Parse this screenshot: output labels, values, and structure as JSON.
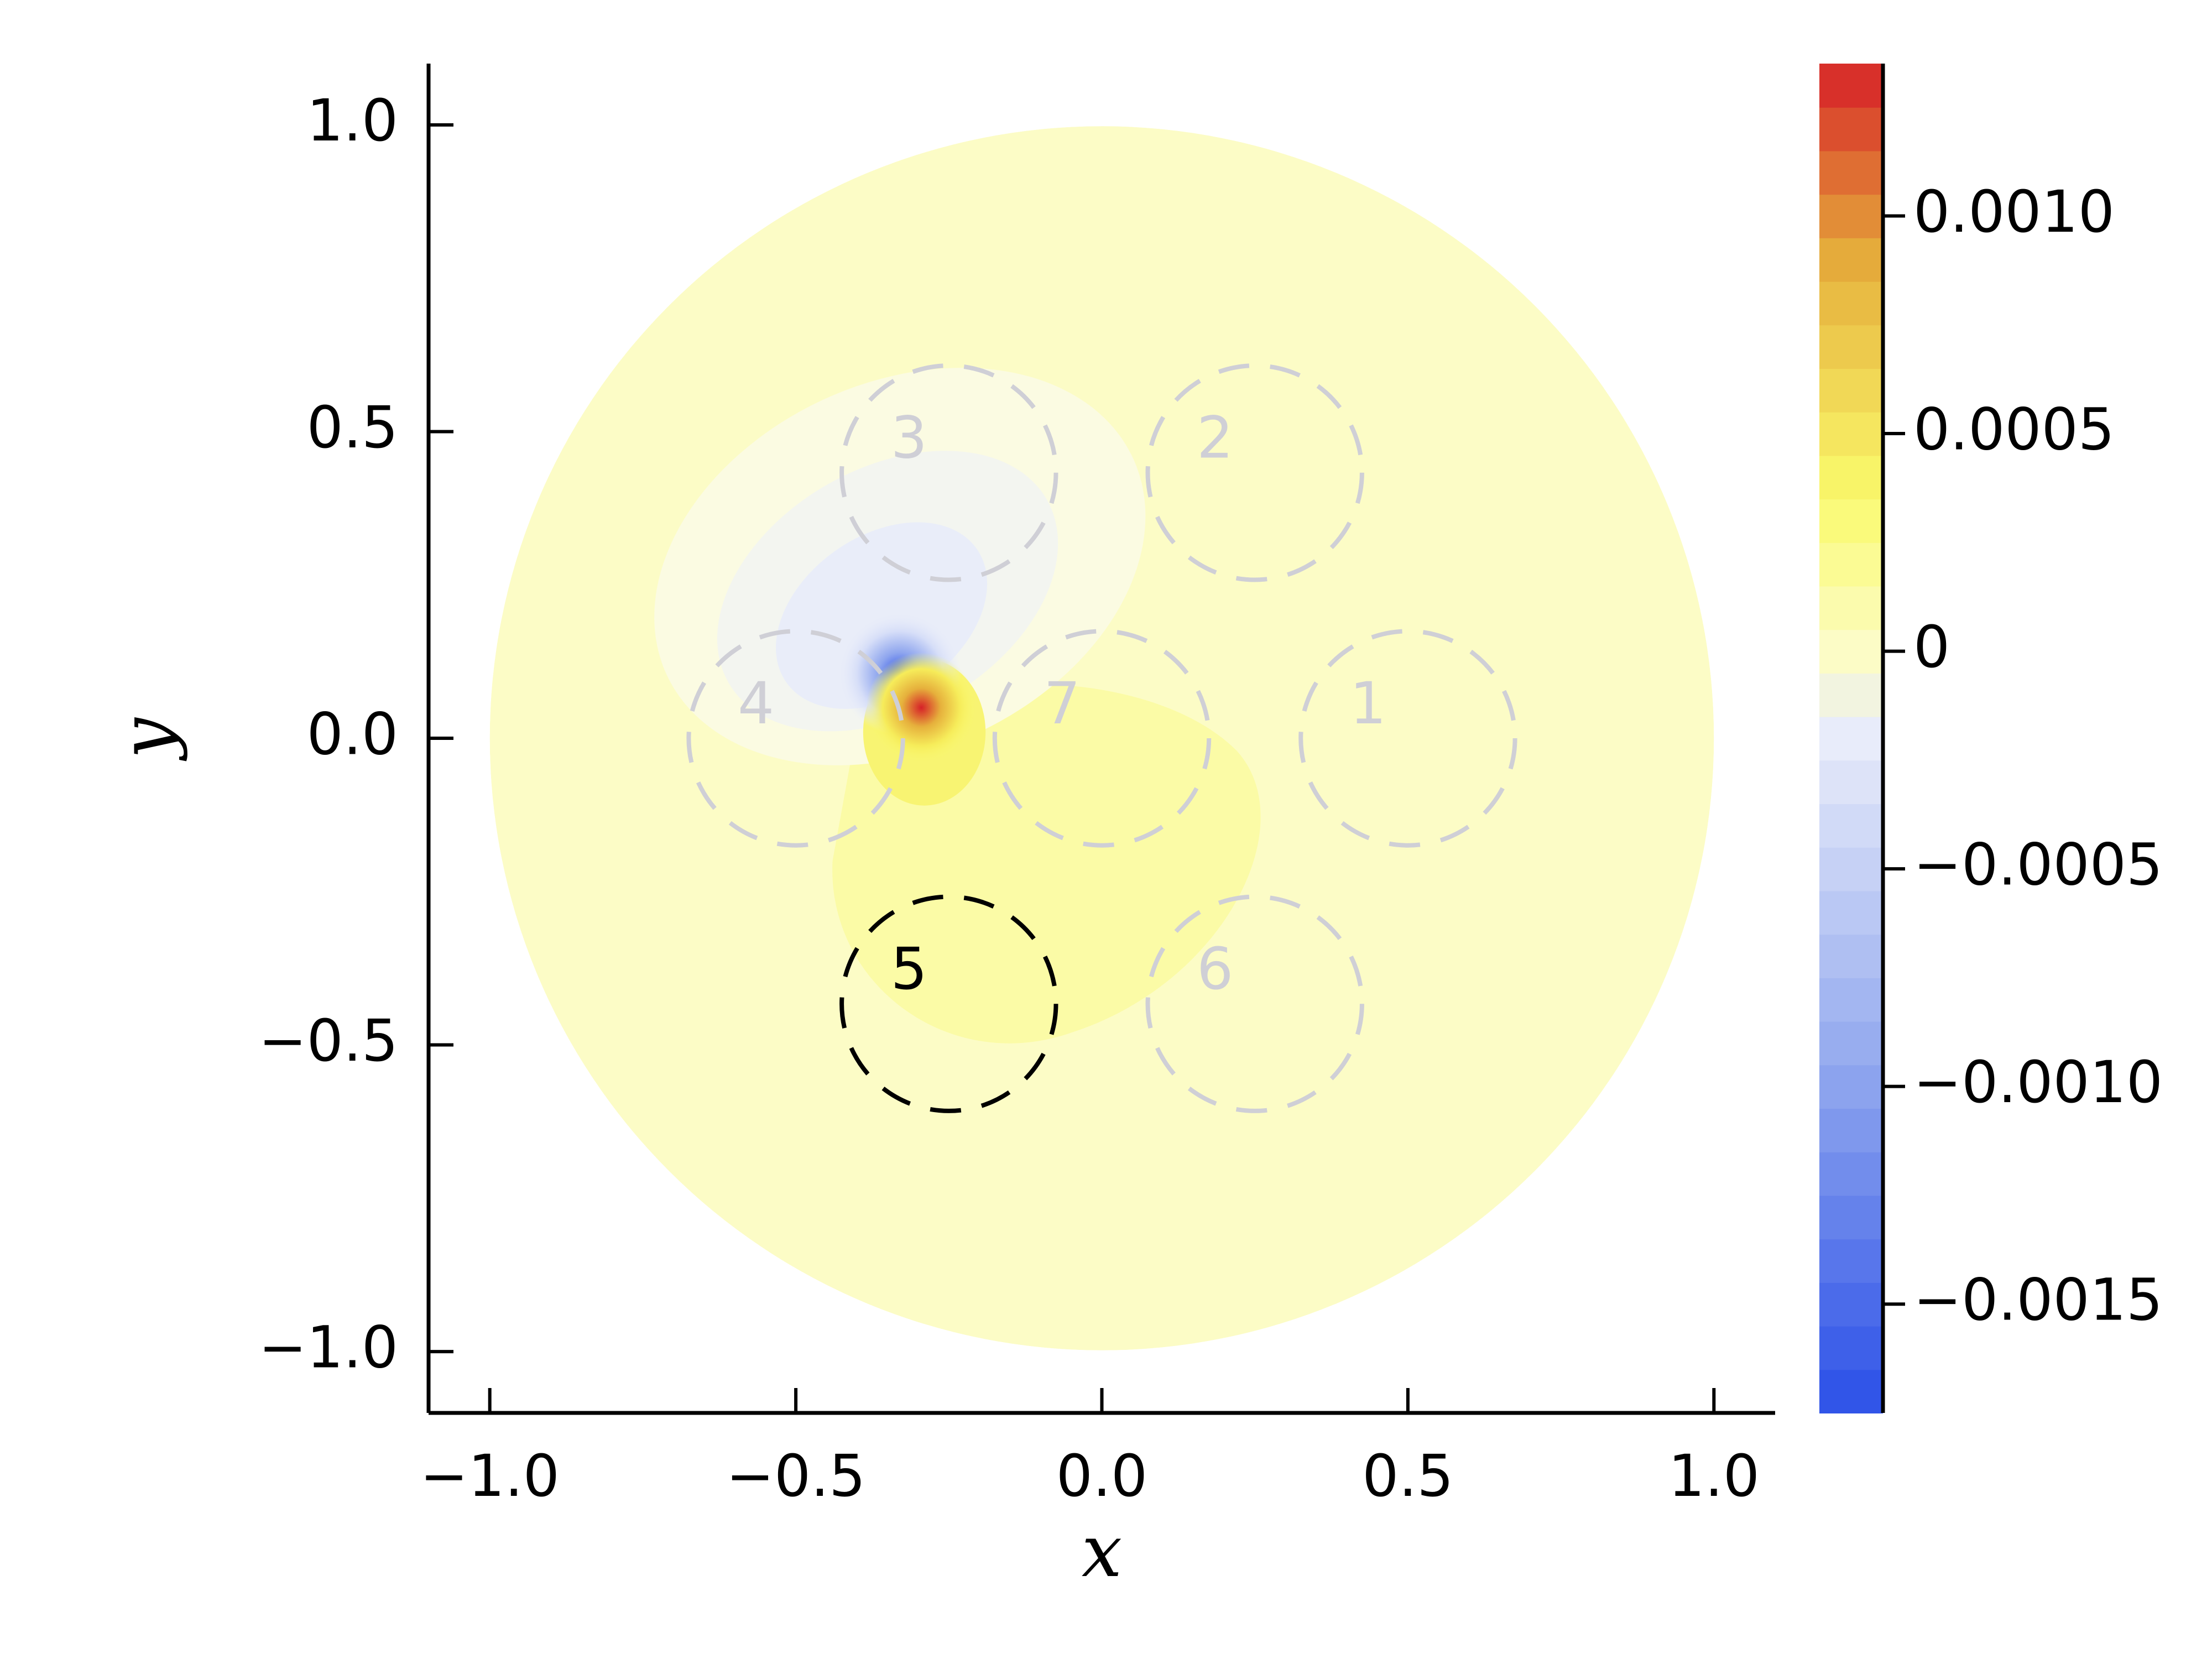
{
  "chart_data": {
    "type": "heatmap",
    "title": "",
    "xlabel": "x",
    "ylabel": "y",
    "xlim": [
      -1.1,
      1.1
    ],
    "ylim": [
      -1.1,
      1.1
    ],
    "x_ticks": [
      -1.0,
      -0.5,
      0.0,
      0.5,
      1.0
    ],
    "x_tick_labels": [
      "−1.0",
      "−0.5",
      "0.0",
      "0.5",
      "1.0"
    ],
    "y_ticks": [
      -1.0,
      -0.5,
      0.0,
      0.5,
      1.0
    ],
    "y_tick_labels": [
      "−1.0",
      "−0.5",
      "0.0",
      "0.5",
      "1.0"
    ],
    "grid": false,
    "domain": {
      "shape": "disk",
      "center": [
        0,
        0
      ],
      "radius": 1.0
    },
    "colorbar": {
      "range": [
        -0.00175,
        0.00135
      ],
      "ticks": [
        0.001,
        0.0005,
        0,
        -0.0005,
        -0.001,
        -0.0015
      ],
      "tick_labels": [
        "0.0010",
        "0.0005",
        "0",
        "−0.0005",
        "−0.0010",
        "−0.0015"
      ],
      "levels": 31,
      "colors": {
        "neg_max": "#2b4fe8",
        "neg_mid": "#8fa6ee",
        "neg_low": "#e8ecfa",
        "zero": "#fcfcc6",
        "pos_low": "#fafa6c",
        "pos_mid": "#e6b03c",
        "pos_max": "#d62128"
      }
    },
    "field": {
      "background_value": 5e-05,
      "dipole": {
        "positive": [
          -0.295,
          0.05
        ],
        "negative": [
          -0.33,
          0.105
        ]
      },
      "features": [
        {
          "x": -0.3,
          "y": 0.04,
          "value": 0.00125
        },
        {
          "x": -0.33,
          "y": 0.105,
          "value": -0.0016
        },
        {
          "x": -0.28,
          "y": 0.0,
          "value": 0.00035
        },
        {
          "x": -0.12,
          "y": -0.12,
          "value": 0.0002
        },
        {
          "x": -0.2,
          "y": -0.42,
          "value": 0.00015
        },
        {
          "x": -0.35,
          "y": 0.22,
          "value": -0.0004
        },
        {
          "x": -0.42,
          "y": 0.3,
          "value": -0.0002
        }
      ]
    },
    "circles": [
      {
        "label": "1",
        "x": 0.5,
        "y": 0.0,
        "r": 0.175,
        "highlighted": false
      },
      {
        "label": "2",
        "x": 0.25,
        "y": 0.433,
        "r": 0.175,
        "highlighted": false
      },
      {
        "label": "3",
        "x": -0.25,
        "y": 0.433,
        "r": 0.175,
        "highlighted": false
      },
      {
        "label": "4",
        "x": -0.5,
        "y": 0.0,
        "r": 0.175,
        "highlighted": false
      },
      {
        "label": "5",
        "x": -0.25,
        "y": -0.433,
        "r": 0.175,
        "highlighted": true
      },
      {
        "label": "6",
        "x": 0.25,
        "y": -0.433,
        "r": 0.175,
        "highlighted": false
      },
      {
        "label": "7",
        "x": 0.0,
        "y": 0.0,
        "r": 0.175,
        "highlighted": false
      }
    ],
    "circle_colors": {
      "normal": "#cfcfd6",
      "highlighted": "#000000"
    }
  }
}
